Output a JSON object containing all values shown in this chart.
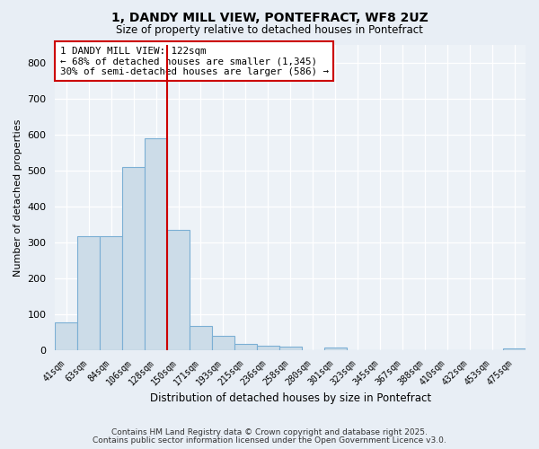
{
  "title_line1": "1, DANDY MILL VIEW, PONTEFRACT, WF8 2UZ",
  "title_line2": "Size of property relative to detached houses in Pontefract",
  "xlabel": "Distribution of detached houses by size in Pontefract",
  "ylabel": "Number of detached properties",
  "categories": [
    "41sqm",
    "63sqm",
    "84sqm",
    "106sqm",
    "128sqm",
    "150sqm",
    "171sqm",
    "193sqm",
    "215sqm",
    "236sqm",
    "258sqm",
    "280sqm",
    "301sqm",
    "323sqm",
    "345sqm",
    "367sqm",
    "388sqm",
    "410sqm",
    "432sqm",
    "453sqm",
    "475sqm"
  ],
  "values": [
    78,
    316,
    316,
    510,
    590,
    335,
    68,
    40,
    17,
    12,
    10,
    0,
    8,
    0,
    0,
    0,
    0,
    0,
    0,
    0,
    5
  ],
  "bar_color": "#ccdce8",
  "bar_edge_color": "#7bafd4",
  "vline_x": 4.5,
  "vline_color": "#cc0000",
  "annotation_title": "1 DANDY MILL VIEW: 122sqm",
  "annotation_line1": "← 68% of detached houses are smaller (1,345)",
  "annotation_line2": "30% of semi-detached houses are larger (586) →",
  "annotation_box_color": "#cc0000",
  "annotation_text_color": "#000000",
  "annotation_bg": "#ffffff",
  "ylim": [
    0,
    850
  ],
  "yticks": [
    0,
    100,
    200,
    300,
    400,
    500,
    600,
    700,
    800
  ],
  "footer_line1": "Contains HM Land Registry data © Crown copyright and database right 2025.",
  "footer_line2": "Contains public sector information licensed under the Open Government Licence v3.0.",
  "background_color": "#e8eef5",
  "plot_background": "#edf2f7"
}
